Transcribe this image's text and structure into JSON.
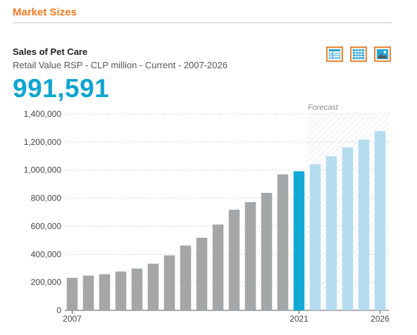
{
  "header": {
    "section_title": "Market Sizes"
  },
  "chart_header": {
    "title": "Sales of Pet Care",
    "subtitle": "Retail Value RSP - CLP million - Current - 2007-2026",
    "headline_value": "991,591"
  },
  "view_buttons": [
    {
      "icon": "table-icon"
    },
    {
      "icon": "grid-icon"
    },
    {
      "icon": "image-icon"
    }
  ],
  "colors": {
    "historic": "#a5a6a8",
    "current": "#12a9d6",
    "forecast": "#b5dcee",
    "accent": "#f07a22"
  },
  "chart_data": {
    "type": "bar",
    "categories": [
      "2007",
      "2008",
      "2009",
      "2010",
      "2011",
      "2012",
      "2013",
      "2014",
      "2015",
      "2016",
      "2017",
      "2018",
      "2019",
      "2020",
      "2021",
      "2022",
      "2023",
      "2024",
      "2025",
      "2026"
    ],
    "values": [
      232000,
      248000,
      258000,
      277000,
      298000,
      333000,
      392000,
      462000,
      518000,
      612000,
      718000,
      772000,
      838000,
      970000,
      991591,
      1042000,
      1098000,
      1162000,
      1218000,
      1278000
    ],
    "x_tick_labels": [
      "2007",
      "2021",
      "2026"
    ],
    "y_ticks": [
      0,
      200000,
      400000,
      600000,
      800000,
      1000000,
      1200000,
      1400000
    ],
    "y_tick_labels": [
      "0",
      "200,000",
      "400,000",
      "600,000",
      "800,000",
      "1,000,000",
      "1,200,000",
      "1,400,000"
    ],
    "ylim": [
      0,
      1400000
    ],
    "highlight_year": "2021",
    "forecast_start": "2022",
    "forecast_label": "Forecast",
    "grid": true
  }
}
